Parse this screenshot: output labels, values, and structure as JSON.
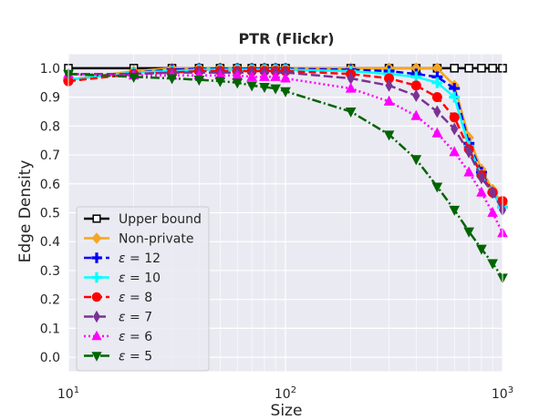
{
  "chart_data": {
    "type": "line",
    "title": "PTR (Flickr)",
    "xlabel": "Size",
    "ylabel": "Edge Density",
    "xscale": "log",
    "xlim": [
      10,
      1000
    ],
    "ylim": [
      -0.05,
      1.05
    ],
    "x_ticks": [
      {
        "value": 10,
        "base": "10",
        "exp": "1"
      },
      {
        "value": 100,
        "base": "10",
        "exp": "2"
      },
      {
        "value": 1000,
        "base": "10",
        "exp": "3"
      }
    ],
    "y_ticks": [
      {
        "value": 0.0,
        "label": "0.0"
      },
      {
        "value": 0.1,
        "label": "0.1"
      },
      {
        "value": 0.2,
        "label": "0.2"
      },
      {
        "value": 0.3,
        "label": "0.3"
      },
      {
        "value": 0.4,
        "label": "0.4"
      },
      {
        "value": 0.5,
        "label": "0.5"
      },
      {
        "value": 0.6,
        "label": "0.6"
      },
      {
        "value": 0.7,
        "label": "0.7"
      },
      {
        "value": 0.8,
        "label": "0.8"
      },
      {
        "value": 0.9,
        "label": "0.9"
      },
      {
        "value": 1.0,
        "label": "1.0"
      }
    ],
    "grid": true,
    "legend_position": "lower-left",
    "series": [
      {
        "name": "Upper bound",
        "latex": false,
        "color": "#000000",
        "dash": "",
        "marker": "square-open",
        "width": 2.5,
        "x": [
          10,
          20,
          30,
          40,
          50,
          60,
          70,
          80,
          90,
          100,
          200,
          300,
          400,
          500,
          600,
          700,
          800,
          900,
          1000
        ],
        "y": [
          1,
          1,
          1,
          1,
          1,
          1,
          1,
          1,
          1,
          1,
          1,
          1,
          1,
          1,
          1,
          1,
          1,
          1,
          1
        ]
      },
      {
        "name": "Non-private",
        "latex": false,
        "color": "#f5a623",
        "dash": "",
        "marker": "diamond",
        "width": 2.5,
        "x": [
          10,
          20,
          30,
          40,
          50,
          60,
          70,
          80,
          90,
          100,
          200,
          300,
          400,
          500,
          600,
          700,
          800,
          900,
          1000
        ],
        "y": [
          0.96,
          0.99,
          1.0,
          1.0,
          1.0,
          1.0,
          1.0,
          1.0,
          1.0,
          1.0,
          1.0,
          1.0,
          1.0,
          1.0,
          0.94,
          0.76,
          0.65,
          0.58,
          0.53
        ]
      },
      {
        "name": "ε = 12",
        "latex": true,
        "sym": "ε",
        "val": "12",
        "color": "#0000ff",
        "dash": "8,4",
        "marker": "plus",
        "width": 2.5,
        "x": [
          10,
          20,
          30,
          40,
          50,
          60,
          70,
          80,
          90,
          100,
          200,
          300,
          400,
          500,
          600,
          700,
          800,
          900,
          1000
        ],
        "y": [
          0.96,
          0.985,
          0.995,
          0.998,
          0.998,
          0.998,
          0.998,
          0.998,
          0.998,
          0.998,
          0.995,
          0.99,
          0.98,
          0.97,
          0.93,
          0.74,
          0.64,
          0.57,
          0.52
        ]
      },
      {
        "name": "ε = 10",
        "latex": true,
        "sym": "ε",
        "val": "10",
        "color": "#00ffff",
        "dash": "",
        "marker": "plus",
        "width": 2.5,
        "x": [
          10,
          20,
          30,
          40,
          50,
          60,
          70,
          80,
          90,
          100,
          200,
          300,
          400,
          500,
          600,
          700,
          800,
          900,
          1000
        ],
        "y": [
          0.96,
          0.985,
          0.99,
          0.995,
          0.995,
          0.995,
          0.995,
          0.995,
          0.995,
          0.995,
          0.99,
          0.98,
          0.97,
          0.95,
          0.9,
          0.73,
          0.63,
          0.57,
          0.52
        ]
      },
      {
        "name": "ε = 8",
        "latex": true,
        "sym": "ε",
        "val": "8",
        "color": "#ff0000",
        "dash": "8,4",
        "marker": "circle",
        "width": 2.5,
        "x": [
          10,
          20,
          30,
          40,
          50,
          60,
          70,
          80,
          90,
          100,
          200,
          300,
          400,
          500,
          600,
          700,
          800,
          900,
          1000
        ],
        "y": [
          0.955,
          0.98,
          0.985,
          0.99,
          0.99,
          0.99,
          0.99,
          0.99,
          0.99,
          0.99,
          0.98,
          0.965,
          0.94,
          0.9,
          0.83,
          0.72,
          0.63,
          0.57,
          0.54
        ]
      },
      {
        "name": "ε = 7",
        "latex": true,
        "sym": "ε",
        "val": "7",
        "color": "#7b3294",
        "dash": "10,4",
        "marker": "diamond-thin",
        "width": 2.5,
        "x": [
          10,
          20,
          30,
          40,
          50,
          60,
          70,
          80,
          90,
          100,
          200,
          300,
          400,
          500,
          600,
          700,
          800,
          900,
          1000
        ],
        "y": [
          0.98,
          0.98,
          0.985,
          0.985,
          0.985,
          0.985,
          0.985,
          0.985,
          0.985,
          0.985,
          0.965,
          0.94,
          0.905,
          0.85,
          0.79,
          0.71,
          0.62,
          0.57,
          0.51
        ]
      },
      {
        "name": "ε = 6",
        "latex": true,
        "sym": "ε",
        "val": "6",
        "color": "#ff00ff",
        "dash": "2,3",
        "marker": "triangle-up",
        "width": 2.5,
        "x": [
          10,
          20,
          30,
          40,
          50,
          60,
          70,
          80,
          90,
          100,
          200,
          300,
          400,
          500,
          600,
          700,
          800,
          900,
          1000
        ],
        "y": [
          0.98,
          0.975,
          0.975,
          0.975,
          0.975,
          0.975,
          0.97,
          0.97,
          0.97,
          0.965,
          0.93,
          0.885,
          0.835,
          0.775,
          0.71,
          0.64,
          0.57,
          0.5,
          0.43
        ]
      },
      {
        "name": "ε = 5",
        "latex": true,
        "sym": "ε",
        "val": "5",
        "color": "#006400",
        "dash": "10,3,2,3",
        "marker": "triangle-down",
        "width": 2.5,
        "x": [
          10,
          20,
          30,
          40,
          50,
          60,
          70,
          80,
          90,
          100,
          200,
          300,
          400,
          500,
          600,
          700,
          800,
          900,
          1000
        ],
        "y": [
          0.98,
          0.97,
          0.965,
          0.96,
          0.955,
          0.95,
          0.94,
          0.935,
          0.93,
          0.92,
          0.85,
          0.77,
          0.685,
          0.59,
          0.51,
          0.435,
          0.375,
          0.325,
          0.275
        ]
      }
    ]
  }
}
